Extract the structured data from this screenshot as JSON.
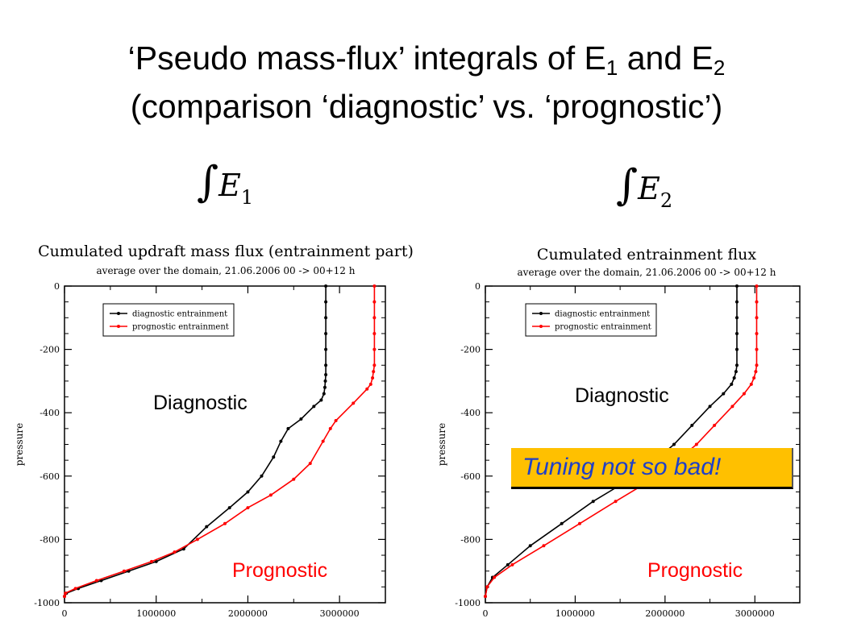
{
  "slide": {
    "title_line1": "‘Pseudo mass-flux’ integrals of E",
    "title_sub1": "1",
    "title_mid": " and E",
    "title_sub2": "2",
    "title_line2": "(comparison ‘diagnostic’ vs. ‘prognostic’)",
    "formula_left": {
      "symbol": "∫",
      "var": "E",
      "sub": "1"
    },
    "formula_right": {
      "symbol": "∫",
      "var": "E",
      "sub": "2"
    },
    "callout": "Tuning not so bad!"
  },
  "colors": {
    "diagnostic": "#000000",
    "prognostic": "#ff0000",
    "callout_bg": "#ffc000",
    "callout_text": "#1f40c8"
  },
  "chart_data": [
    {
      "type": "line",
      "title": "Cumulated updraft mass flux (entrainment part)",
      "subtitle": "average over the domain, 21.06.2006 00 -> 00+12 h",
      "xlabel": "",
      "ylabel": "pressure",
      "xlim": [
        0,
        3500000
      ],
      "ylim": [
        -1000,
        0
      ],
      "xticks": [
        "0",
        "1000000",
        "2000000",
        "3000000"
      ],
      "yticks": [
        "0",
        "-200",
        "-400",
        "-600",
        "-800",
        "-1000"
      ],
      "legend": "top-left",
      "overlay_labels": {
        "diagnostic": "Diagnostic",
        "prognostic": "Prognostic"
      },
      "series": [
        {
          "name": "diagnostic entrainment",
          "color": "#000000",
          "x": [
            2850000,
            2850000,
            2850000,
            2850000,
            2850000,
            2850000,
            2850000,
            2845000,
            2840000,
            2830000,
            2800000,
            2720000,
            2580000,
            2440000,
            2360000,
            2280000,
            2150000,
            2000000,
            1800000,
            1550000,
            1300000,
            1000000,
            700000,
            400000,
            150000,
            20000,
            0
          ],
          "y": [
            0,
            -50,
            -100,
            -150,
            -200,
            -250,
            -280,
            -300,
            -320,
            -340,
            -360,
            -380,
            -420,
            -450,
            -490,
            -540,
            -600,
            -650,
            -700,
            -760,
            -830,
            -870,
            -900,
            -930,
            -955,
            -970,
            -980
          ]
        },
        {
          "name": "prognostic entrainment",
          "color": "#ff0000",
          "x": [
            3380000,
            3380000,
            3380000,
            3380000,
            3380000,
            3380000,
            3370000,
            3360000,
            3340000,
            3300000,
            3150000,
            2960000,
            2900000,
            2820000,
            2680000,
            2500000,
            2250000,
            2000000,
            1750000,
            1450000,
            1200000,
            950000,
            650000,
            350000,
            120000,
            10000,
            0
          ],
          "y": [
            0,
            -50,
            -100,
            -150,
            -200,
            -250,
            -270,
            -290,
            -310,
            -325,
            -370,
            -425,
            -450,
            -490,
            -560,
            -610,
            -660,
            -700,
            -750,
            -800,
            -840,
            -870,
            -900,
            -930,
            -955,
            -970,
            -980
          ]
        }
      ]
    },
    {
      "type": "line",
      "title": "Cumulated entrainment flux",
      "subtitle": "average over the domain, 21.06.2006 00 -> 00+12 h",
      "xlabel": "",
      "ylabel": "pressure",
      "xlim": [
        0,
        3500000
      ],
      "ylim": [
        -1000,
        0
      ],
      "xticks": [
        "0",
        "1000000",
        "2000000",
        "3000000"
      ],
      "yticks": [
        "0",
        "-200",
        "-400",
        "-600",
        "-800",
        "-1000"
      ],
      "legend": "top-left",
      "overlay_labels": {
        "diagnostic": "Diagnostic",
        "prognostic": "Prognostic"
      },
      "series": [
        {
          "name": "diagnostic entrainment",
          "color": "#000000",
          "x": [
            2800000,
            2800000,
            2800000,
            2800000,
            2800000,
            2800000,
            2790000,
            2770000,
            2740000,
            2650000,
            2500000,
            2300000,
            2100000,
            1850000,
            1550000,
            1200000,
            850000,
            500000,
            250000,
            80000,
            20000,
            0
          ],
          "y": [
            0,
            -50,
            -100,
            -150,
            -200,
            -250,
            -270,
            -290,
            -310,
            -340,
            -380,
            -440,
            -500,
            -560,
            -620,
            -680,
            -750,
            -820,
            -880,
            -920,
            -950,
            -980
          ]
        },
        {
          "name": "prognostic entrainment",
          "color": "#ff0000",
          "x": [
            3020000,
            3020000,
            3020000,
            3020000,
            3020000,
            3020000,
            3010000,
            2990000,
            2960000,
            2880000,
            2750000,
            2550000,
            2350000,
            2100000,
            1800000,
            1450000,
            1050000,
            650000,
            300000,
            100000,
            20000,
            0
          ],
          "y": [
            0,
            -50,
            -100,
            -150,
            -200,
            -250,
            -270,
            -290,
            -310,
            -340,
            -380,
            -440,
            -500,
            -560,
            -620,
            -680,
            -750,
            -820,
            -880,
            -920,
            -950,
            -980
          ]
        }
      ]
    }
  ]
}
